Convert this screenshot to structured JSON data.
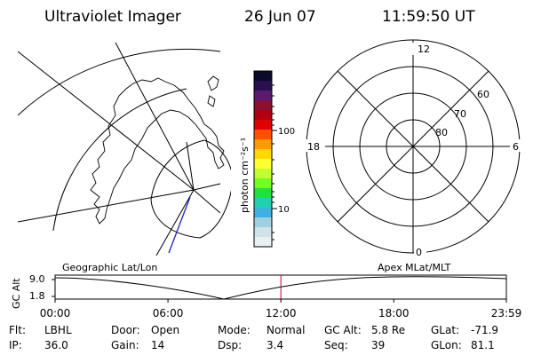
{
  "header": {
    "instrument": "Ultraviolet Imager",
    "date": "26 Jun 07",
    "time": "11:59:50 UT"
  },
  "colorbar": {
    "label": "photon cm⁻²s⁻¹",
    "tick_labels": [
      "100",
      "10"
    ],
    "colors": [
      "#0a0a2a",
      "#2a1050",
      "#5a1a70",
      "#8a1030",
      "#b00010",
      "#e00000",
      "#ff5000",
      "#ff9a00",
      "#ffd800",
      "#ffff30",
      "#c0ff30",
      "#70ff20",
      "#20e040",
      "#20d0b0",
      "#40b0e0",
      "#a0d0e0",
      "#d0e4e8",
      "#e8f0f0"
    ]
  },
  "geo_panel": {
    "label": "Geographic Lat/Lon"
  },
  "polar_panel": {
    "label": "Apex MLat/MLT",
    "mlt_labels": [
      "12",
      "18",
      "6",
      "0"
    ],
    "mlat_labels": [
      "60",
      "70",
      "80"
    ]
  },
  "alt_plot": {
    "ylabel": "GC Alt",
    "y_ticks": [
      "9.0",
      "1.8"
    ],
    "x_ticks": [
      "00:00",
      "06:00",
      "12:00",
      "18:00",
      "23:59"
    ],
    "marker_time": "12:00",
    "marker_color": "#c00030"
  },
  "status": {
    "row1": [
      {
        "label": "Flt:",
        "value": "LBHL"
      },
      {
        "label": "Door:",
        "value": "Open"
      },
      {
        "label": "Mode:",
        "value": "Normal"
      },
      {
        "label": "GC Alt:",
        "value": "5.8 Re"
      },
      {
        "label": "GLat:",
        "value": "-71.9"
      }
    ],
    "row2": [
      {
        "label": "IP:",
        "value": "36.0"
      },
      {
        "label": "Gain:",
        "value": "14"
      },
      {
        "label": "Dsp:",
        "value": "3.4"
      },
      {
        "label": "Seq:",
        "value": "39"
      },
      {
        "label": "GLon:",
        "value": "81.1"
      }
    ]
  }
}
